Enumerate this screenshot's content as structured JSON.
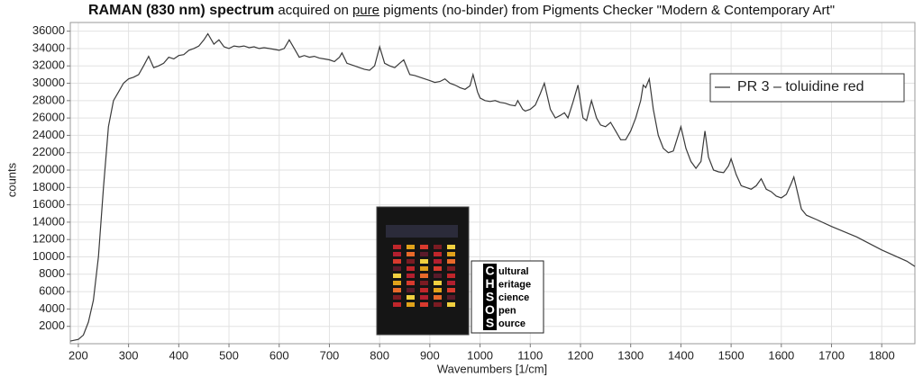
{
  "chart_data": {
    "type": "line",
    "title": "RAMAN (830 nm) spectrum",
    "title_rest": [
      "acquired on",
      "pure",
      "pigments (no-binder) from Pigments Checker \"Modern & Contemporary Art\""
    ],
    "x_label": "Wavenumbers [1/cm]",
    "y_label": "counts",
    "x": [
      184,
      200,
      210,
      220,
      230,
      240,
      250,
      260,
      270,
      280,
      290,
      300,
      310,
      320,
      330,
      340,
      350,
      360,
      370,
      380,
      390,
      400,
      410,
      420,
      430,
      440,
      450,
      458,
      470,
      480,
      490,
      500,
      510,
      520,
      530,
      540,
      550,
      560,
      570,
      580,
      590,
      600,
      610,
      620,
      630,
      640,
      650,
      660,
      670,
      680,
      690,
      700,
      710,
      720,
      725,
      735,
      750,
      760,
      770,
      780,
      790,
      800,
      810,
      820,
      830,
      840,
      848,
      860,
      870,
      880,
      890,
      900,
      910,
      920,
      930,
      940,
      950,
      960,
      970,
      980,
      986,
      995,
      1000,
      1010,
      1020,
      1030,
      1040,
      1050,
      1060,
      1070,
      1075,
      1085,
      1090,
      1100,
      1110,
      1120,
      1128,
      1140,
      1150,
      1160,
      1168,
      1175,
      1185,
      1195,
      1205,
      1212,
      1222,
      1232,
      1240,
      1250,
      1260,
      1270,
      1280,
      1290,
      1300,
      1310,
      1320,
      1325,
      1330,
      1337,
      1345,
      1355,
      1365,
      1375,
      1385,
      1392,
      1400,
      1410,
      1420,
      1430,
      1440,
      1448,
      1455,
      1465,
      1475,
      1485,
      1495,
      1500,
      1510,
      1520,
      1530,
      1540,
      1550,
      1560,
      1570,
      1580,
      1590,
      1600,
      1610,
      1620,
      1625,
      1630,
      1640,
      1650,
      1670,
      1700,
      1750,
      1800,
      1850,
      1866
    ],
    "series": [
      {
        "name": "PR 3 – toluidine red",
        "color": "#3a3a3a",
        "values": [
          300,
          500,
          1000,
          2500,
          5000,
          10000,
          18000,
          25000,
          28000,
          29000,
          30000,
          30500,
          30700,
          31000,
          32000,
          33100,
          31800,
          32000,
          32300,
          33000,
          32800,
          33200,
          33300,
          33800,
          34000,
          34300,
          35000,
          35700,
          34500,
          35000,
          34200,
          34000,
          34300,
          34200,
          34300,
          34100,
          34200,
          34000,
          34100,
          34000,
          33900,
          33800,
          34000,
          35000,
          34000,
          33000,
          33200,
          33000,
          33100,
          32900,
          32800,
          32700,
          32500,
          33000,
          33500,
          32300,
          32000,
          31800,
          31600,
          31500,
          32000,
          34200,
          32300,
          32000,
          31800,
          32300,
          32700,
          31000,
          30900,
          30700,
          30500,
          30300,
          30100,
          30200,
          30500,
          30000,
          29800,
          29500,
          29300,
          29700,
          31000,
          29000,
          28300,
          28000,
          27900,
          28000,
          27800,
          27700,
          27500,
          27400,
          28000,
          27000,
          26800,
          27000,
          27500,
          28800,
          30000,
          27000,
          26000,
          26300,
          26600,
          26000,
          27800,
          29800,
          26000,
          25700,
          28000,
          26000,
          25200,
          25000,
          25500,
          24500,
          23500,
          23500,
          24500,
          26000,
          28000,
          29800,
          29500,
          30500,
          27000,
          24000,
          22500,
          22000,
          22200,
          23500,
          25000,
          22500,
          21000,
          20200,
          21000,
          24500,
          21500,
          20000,
          19800,
          19700,
          20500,
          21300,
          19500,
          18200,
          18000,
          17800,
          18200,
          19000,
          17800,
          17500,
          17000,
          16800,
          17200,
          18500,
          19200,
          18000,
          15500,
          14800,
          14300,
          13500,
          12300,
          10800,
          9500,
          8900
        ]
      }
    ],
    "xlim": [
      184,
      1866
    ],
    "ylim": [
      0,
      37000
    ],
    "xticks": [
      200,
      300,
      400,
      500,
      600,
      700,
      800,
      900,
      1000,
      1100,
      1200,
      1300,
      1400,
      1500,
      1600,
      1700,
      1800
    ],
    "yticks": [
      2000,
      4000,
      6000,
      8000,
      10000,
      12000,
      14000,
      16000,
      18000,
      20000,
      22000,
      24000,
      26000,
      28000,
      30000,
      32000,
      34000,
      36000
    ],
    "grid": true,
    "legend": "upper right"
  },
  "logo": {
    "letters": [
      "C",
      "H",
      "S",
      "O",
      "S"
    ],
    "words": [
      "ultural",
      "eritage",
      "cience",
      "pen",
      "ource"
    ]
  }
}
